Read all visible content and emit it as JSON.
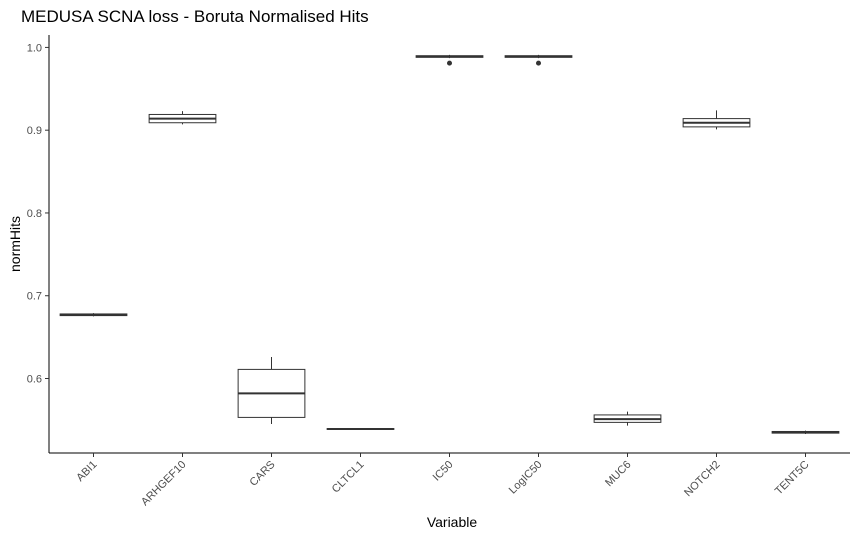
{
  "chart_data": {
    "type": "box",
    "title": "MEDUSA SCNA loss - Boruta Normalised Hits",
    "xlabel": "Variable",
    "ylabel": "normHits",
    "ylim": [
      0.51,
      1.015
    ],
    "yticks": [
      0.6,
      0.7,
      0.8,
      0.9,
      1.0
    ],
    "ytick_labels": [
      "0.6",
      "0.7",
      "0.8",
      "0.9",
      "1.0"
    ],
    "grid": false,
    "categories": [
      "ABI1",
      "ARHGEF10",
      "CARS",
      "CLTCL1",
      "IC50",
      "LogIC50",
      "MUC6",
      "NOTCH2",
      "TENT5C"
    ],
    "boxes": [
      {
        "category": "ABI1",
        "min": 0.675,
        "q1": 0.676,
        "median": 0.677,
        "q3": 0.678,
        "max": 0.679,
        "outliers": []
      },
      {
        "category": "ARHGEF10",
        "min": 0.907,
        "q1": 0.909,
        "median": 0.914,
        "q3": 0.919,
        "max": 0.923,
        "outliers": []
      },
      {
        "category": "CARS",
        "min": 0.545,
        "q1": 0.553,
        "median": 0.582,
        "q3": 0.611,
        "max": 0.626,
        "outliers": []
      },
      {
        "category": "CLTCL1",
        "min": 0.538,
        "q1": 0.5385,
        "median": 0.539,
        "q3": 0.5395,
        "max": 0.54,
        "outliers": []
      },
      {
        "category": "IC50",
        "min": 0.987,
        "q1": 0.988,
        "median": 0.989,
        "q3": 0.99,
        "max": 0.991,
        "outliers": [
          0.981
        ]
      },
      {
        "category": "LogIC50",
        "min": 0.987,
        "q1": 0.988,
        "median": 0.989,
        "q3": 0.99,
        "max": 0.991,
        "outliers": [
          0.981
        ]
      },
      {
        "category": "MUC6",
        "min": 0.543,
        "q1": 0.547,
        "median": 0.551,
        "q3": 0.556,
        "max": 0.56,
        "outliers": []
      },
      {
        "category": "NOTCH2",
        "min": 0.901,
        "q1": 0.904,
        "median": 0.909,
        "q3": 0.914,
        "max": 0.924,
        "outliers": []
      },
      {
        "category": "TENT5C",
        "min": 0.533,
        "q1": 0.534,
        "median": 0.535,
        "q3": 0.536,
        "max": 0.537,
        "outliers": []
      }
    ]
  }
}
